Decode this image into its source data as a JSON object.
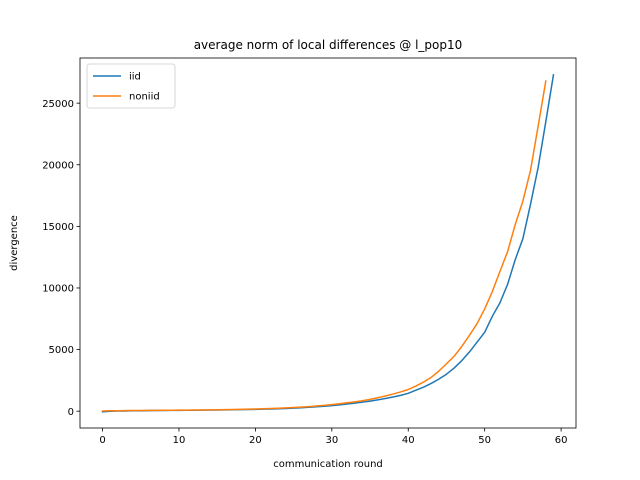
{
  "chart_data": {
    "type": "line",
    "title": "average norm of local differences @ l_pop10",
    "xlabel": "communication round",
    "ylabel": "divergence",
    "xlim": [
      -2.95,
      61.95
    ],
    "ylim": [
      -1365,
      28665
    ],
    "xticks": [
      0,
      10,
      20,
      30,
      40,
      50,
      60
    ],
    "yticks": [
      0,
      5000,
      10000,
      15000,
      20000,
      25000
    ],
    "legend_position": "top-left",
    "grid": false,
    "series": [
      {
        "name": "iid",
        "color": "#1f77b4",
        "x": [
          0,
          1,
          2,
          3,
          4,
          5,
          6,
          7,
          8,
          9,
          10,
          11,
          12,
          13,
          14,
          15,
          16,
          17,
          18,
          19,
          20,
          21,
          22,
          23,
          24,
          25,
          26,
          27,
          28,
          29,
          30,
          31,
          32,
          33,
          34,
          35,
          36,
          37,
          38,
          39,
          40,
          41,
          42,
          43,
          44,
          45,
          46,
          47,
          48,
          49,
          50,
          51,
          52,
          53,
          54,
          55,
          56,
          57,
          58,
          59
        ],
        "values": [
          -50,
          -10,
          10,
          20,
          30,
          40,
          50,
          55,
          60,
          65,
          70,
          75,
          80,
          90,
          95,
          100,
          110,
          120,
          130,
          140,
          150,
          165,
          180,
          200,
          220,
          250,
          280,
          320,
          360,
          400,
          450,
          510,
          580,
          650,
          730,
          820,
          920,
          1030,
          1150,
          1280,
          1450,
          1700,
          1950,
          2250,
          2600,
          3000,
          3500,
          4100,
          4800,
          5600,
          6400,
          7700,
          8800,
          10300,
          12300,
          14000,
          16800,
          19800,
          23500,
          27300
        ]
      },
      {
        "name": "noniid",
        "color": "#ff7f0e",
        "x": [
          0,
          1,
          2,
          3,
          4,
          5,
          6,
          7,
          8,
          9,
          10,
          11,
          12,
          13,
          14,
          15,
          16,
          17,
          18,
          19,
          20,
          21,
          22,
          23,
          24,
          25,
          26,
          27,
          28,
          29,
          30,
          31,
          32,
          33,
          34,
          35,
          36,
          37,
          38,
          39,
          40,
          41,
          42,
          43,
          44,
          45,
          46,
          47,
          48,
          49,
          50,
          51,
          52,
          53,
          54,
          55,
          56,
          57,
          58
        ],
        "values": [
          20,
          30,
          40,
          50,
          55,
          60,
          65,
          70,
          75,
          80,
          85,
          90,
          95,
          100,
          110,
          120,
          130,
          140,
          150,
          165,
          180,
          200,
          220,
          240,
          265,
          295,
          330,
          370,
          420,
          470,
          530,
          600,
          680,
          760,
          850,
          960,
          1090,
          1230,
          1390,
          1560,
          1760,
          2040,
          2360,
          2740,
          3250,
          3850,
          4450,
          5250,
          6150,
          7100,
          8300,
          9700,
          11350,
          12950,
          15150,
          17050,
          19550,
          23150,
          26800
        ]
      }
    ]
  }
}
